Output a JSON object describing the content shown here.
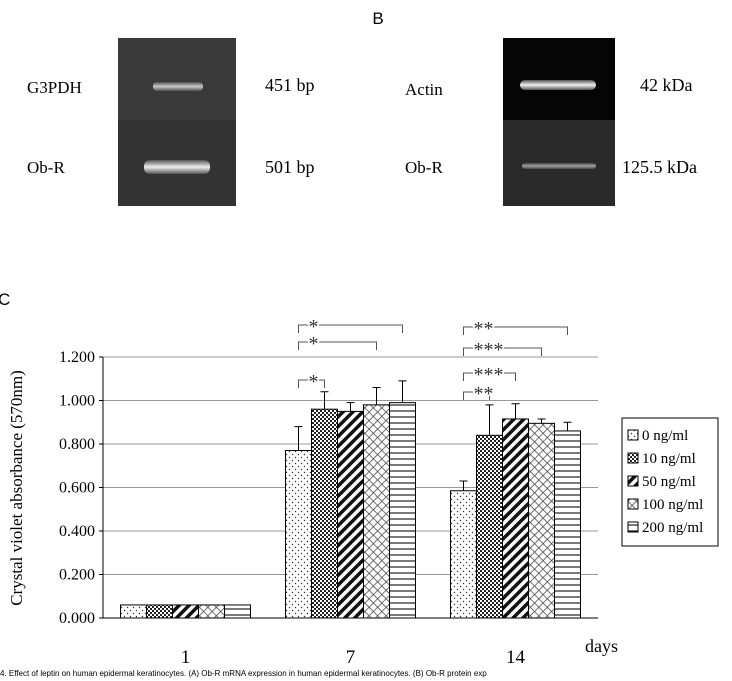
{
  "panel_b": {
    "label": "B",
    "gel_left": {
      "rows": [
        {
          "name": "G3PDH",
          "size": "451 bp"
        },
        {
          "name": "Ob-R",
          "size": "501 bp"
        }
      ]
    },
    "gel_right": {
      "rows": [
        {
          "name": "Actin",
          "size": "42 kDa"
        },
        {
          "name": "Ob-R",
          "size": "125.5 kDa"
        }
      ]
    }
  },
  "chart_data": {
    "type": "bar",
    "panel_label": "C",
    "y_label": "Crystal violet absorbance (570nm)",
    "x_label": "days",
    "categories": [
      "1",
      "7",
      "14"
    ],
    "ylim": [
      0,
      1.2
    ],
    "yticks": [
      {
        "value": 0,
        "label": "0.000"
      },
      {
        "value": 0.2,
        "label": "0.200"
      },
      {
        "value": 0.4,
        "label": "0.400"
      },
      {
        "value": 0.6,
        "label": "0.600"
      },
      {
        "value": 0.8,
        "label": "0.800"
      },
      {
        "value": 1.0,
        "label": "1.000"
      },
      {
        "value": 1.2,
        "label": "1.200"
      }
    ],
    "grid": true,
    "legend": "right",
    "series": [
      {
        "name": "0 ng/ml",
        "pattern": "dots",
        "values": [
          0.06,
          0.77,
          0.585
        ],
        "errors": [
          0,
          0.11,
          0.045
        ]
      },
      {
        "name": "10 ng/ml",
        "pattern": "checker",
        "values": [
          0.06,
          0.96,
          0.84
        ],
        "errors": [
          0,
          0.08,
          0.14
        ]
      },
      {
        "name": "50 ng/ml",
        "pattern": "diagonal",
        "values": [
          0.06,
          0.95,
          0.915
        ],
        "errors": [
          0,
          0.04,
          0.07
        ]
      },
      {
        "name": "100 ng/ml",
        "pattern": "cross",
        "values": [
          0.06,
          0.98,
          0.895
        ],
        "errors": [
          0,
          0.08,
          0.02
        ]
      },
      {
        "name": "200 ng/ml",
        "pattern": "horizontal",
        "values": [
          0.06,
          0.99,
          0.86
        ],
        "errors": [
          0,
          0.1,
          0.04
        ]
      }
    ],
    "annotations": [
      "*",
      "*",
      "*",
      "**",
      "***",
      "***",
      "**"
    ]
  },
  "caption": "4. Effect of leptin on human epidermal keratinocytes. (A) Ob-R mRNA expression in human epidermal keratinocytes. (B) Ob-R protein exp"
}
